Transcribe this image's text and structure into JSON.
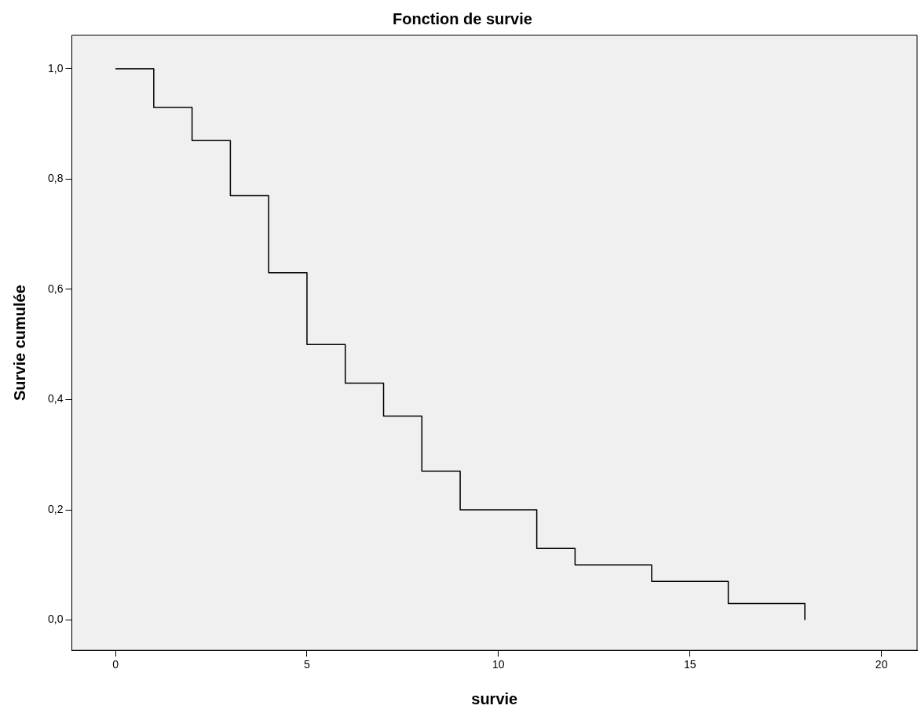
{
  "chart_data": {
    "type": "step",
    "title": "Fonction de survie",
    "xlabel": "survie",
    "ylabel": "Survie cumulée",
    "x": [
      0,
      1,
      2,
      3,
      4,
      5,
      6,
      7,
      8,
      9,
      11,
      12,
      14,
      16,
      18
    ],
    "series": [
      {
        "color": "#000000",
        "values": [
          1,
          0.93,
          0.87,
          0.77,
          0.63,
          0.5,
          0.43,
          0.37,
          0.27,
          0.2,
          0.13,
          0.1,
          0.07,
          0.03,
          0
        ]
      }
    ],
    "xlim": [
      -1.14,
      20.93
    ],
    "xticks": [
      0,
      5,
      10,
      15,
      20
    ],
    "ylim": [
      -0.055,
      1.061
    ],
    "yticks": [
      {
        "value": 0,
        "label": "0,0"
      },
      {
        "value": 0.2,
        "label": "0,2"
      },
      {
        "value": 0.4,
        "label": "0,4"
      },
      {
        "value": 0.6,
        "label": "0,6"
      },
      {
        "value": 0.8,
        "label": "0,8"
      },
      {
        "value": 1,
        "label": "1,0"
      }
    ],
    "grid": false,
    "legend": false,
    "marker": "none",
    "line_style": "solid"
  }
}
